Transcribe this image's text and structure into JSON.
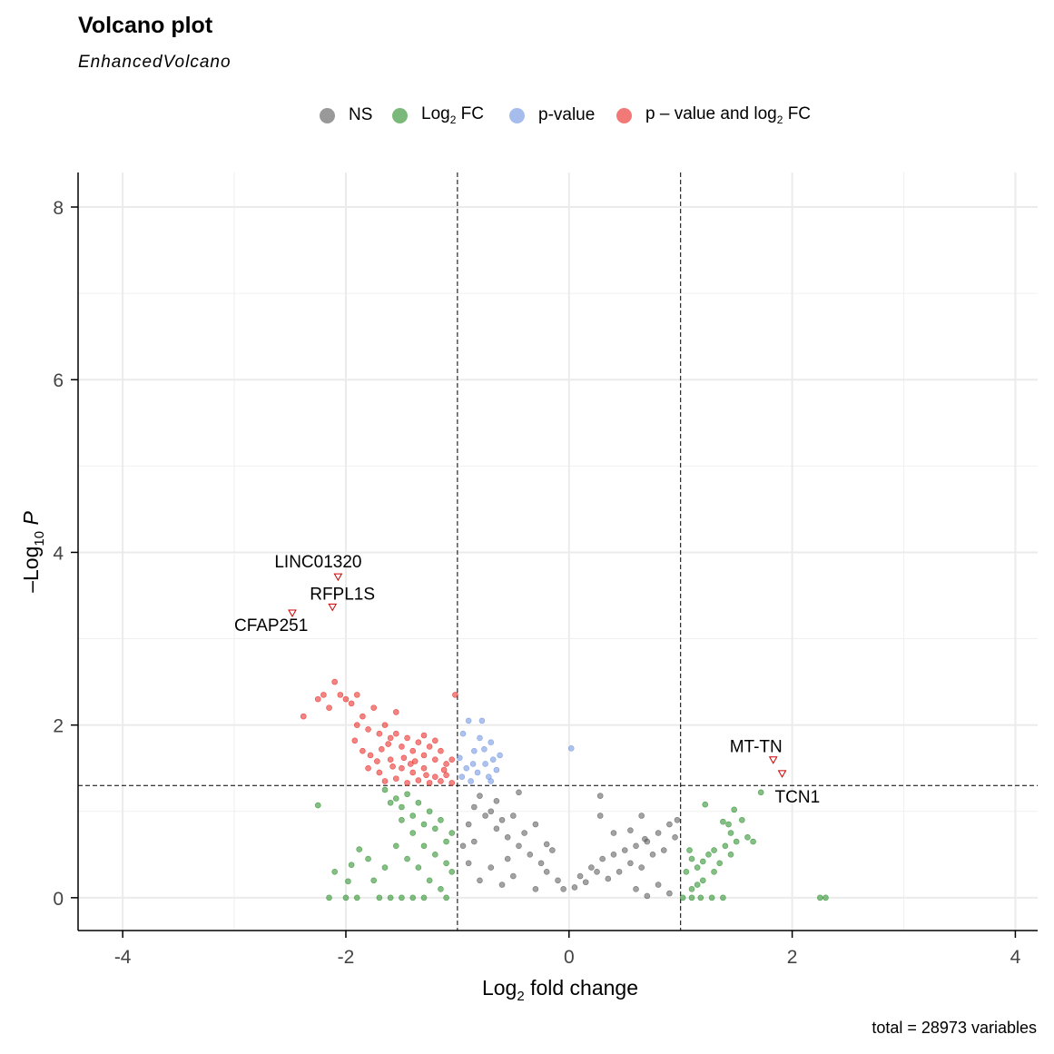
{
  "chart_data": {
    "type": "scatter",
    "title": "Volcano plot",
    "subtitle": "EnhancedVolcano",
    "caption": "total = 28973 variables",
    "xlabel": "Log2 fold change",
    "ylabel": "-Log10 P",
    "xlim": [
      -4.4,
      4.2
    ],
    "ylim": [
      -0.38,
      8.4
    ],
    "x_ticks": [
      -4,
      -2,
      0,
      2,
      4
    ],
    "x_tick_labels": [
      "-4",
      "-2",
      "0",
      "2",
      "4"
    ],
    "y_ticks": [
      0,
      2,
      4,
      6,
      8
    ],
    "y_tick_labels": [
      "0",
      "2",
      "4",
      "6",
      "8"
    ],
    "grid": true,
    "legend_position": "top",
    "fc_cutoffs": [
      -1,
      1
    ],
    "p_cutoff": 1.3,
    "series": [
      {
        "name": "NS",
        "color": "#555555",
        "points": [
          [
            -0.9,
            0.85
          ],
          [
            -0.85,
            1.05
          ],
          [
            -0.8,
            1.18
          ],
          [
            -0.75,
            0.95
          ],
          [
            -0.7,
            1.0
          ],
          [
            -0.65,
            0.8
          ],
          [
            -0.6,
            0.9
          ],
          [
            -0.55,
            0.7
          ],
          [
            -0.5,
            0.95
          ],
          [
            -0.45,
            0.6
          ],
          [
            -0.4,
            0.75
          ],
          [
            -0.35,
            0.5
          ],
          [
            -0.3,
            0.85
          ],
          [
            -0.25,
            0.4
          ],
          [
            -0.2,
            0.3
          ],
          [
            -0.15,
            0.55
          ],
          [
            -0.1,
            0.2
          ],
          [
            -0.05,
            0.1
          ],
          [
            0.05,
            0.12
          ],
          [
            0.1,
            0.25
          ],
          [
            0.15,
            0.18
          ],
          [
            0.2,
            0.35
          ],
          [
            0.25,
            0.3
          ],
          [
            0.3,
            0.45
          ],
          [
            0.35,
            0.22
          ],
          [
            0.4,
            0.5
          ],
          [
            0.45,
            0.3
          ],
          [
            0.5,
            0.55
          ],
          [
            0.55,
            0.4
          ],
          [
            0.6,
            0.6
          ],
          [
            0.65,
            0.35
          ],
          [
            0.7,
            0.65
          ],
          [
            0.75,
            0.5
          ],
          [
            0.8,
            0.75
          ],
          [
            0.85,
            0.55
          ],
          [
            0.9,
            0.85
          ],
          [
            0.95,
            0.7
          ],
          [
            0.97,
            0.9
          ],
          [
            0.28,
            0.95
          ],
          [
            0.55,
            0.78
          ],
          [
            0.68,
            0.68
          ],
          [
            0.28,
            1.18
          ],
          [
            -0.65,
            1.12
          ],
          [
            -0.45,
            1.22
          ],
          [
            -0.9,
            0.4
          ],
          [
            -0.8,
            0.2
          ],
          [
            -0.7,
            0.35
          ],
          [
            -0.6,
            0.15
          ],
          [
            -0.5,
            0.25
          ],
          [
            -0.3,
            0.1
          ],
          [
            0.6,
            0.1
          ],
          [
            0.7,
            0.02
          ],
          [
            0.8,
            0.15
          ],
          [
            0.9,
            0.05
          ],
          [
            -0.95,
            0.6
          ],
          [
            0.65,
            0.95
          ],
          [
            0.4,
            0.75
          ],
          [
            -0.2,
            0.62
          ],
          [
            -0.55,
            0.45
          ],
          [
            -0.85,
            0.65
          ]
        ]
      },
      {
        "name": "Log2 FC",
        "color": "#228b22",
        "points": [
          [
            -1.65,
            1.25
          ],
          [
            -1.55,
            1.15
          ],
          [
            -1.5,
            1.05
          ],
          [
            -1.45,
            1.2
          ],
          [
            -1.4,
            0.95
          ],
          [
            -1.35,
            1.1
          ],
          [
            -1.3,
            0.85
          ],
          [
            -1.25,
            1.0
          ],
          [
            -1.2,
            0.8
          ],
          [
            -1.15,
            0.9
          ],
          [
            -1.1,
            0.65
          ],
          [
            -1.05,
            0.75
          ],
          [
            -1.6,
            1.1
          ],
          [
            -1.5,
            0.9
          ],
          [
            -1.4,
            0.75
          ],
          [
            -1.3,
            0.6
          ],
          [
            -1.2,
            0.5
          ],
          [
            -1.1,
            0.4
          ],
          [
            -1.05,
            0.3
          ],
          [
            -1.55,
            0.6
          ],
          [
            -1.45,
            0.45
          ],
          [
            -1.35,
            0.35
          ],
          [
            -1.25,
            0.2
          ],
          [
            -1.15,
            0.1
          ],
          [
            -1.7,
            0.0
          ],
          [
            -1.5,
            0.0
          ],
          [
            -1.3,
            0.0
          ],
          [
            -1.1,
            0.0
          ],
          [
            -2.25,
            1.07
          ],
          [
            -1.88,
            0.56
          ],
          [
            -1.95,
            0.38
          ],
          [
            -2.1,
            0.3
          ],
          [
            -1.98,
            0.19
          ],
          [
            -1.75,
            0.2
          ],
          [
            -1.8,
            0.45
          ],
          [
            -1.65,
            0.35
          ],
          [
            -2.15,
            0.0
          ],
          [
            -2.0,
            0.0
          ],
          [
            -1.9,
            0.0
          ],
          [
            -1.6,
            0.0
          ],
          [
            -1.4,
            0.0
          ],
          [
            1.05,
            0.3
          ],
          [
            1.1,
            0.45
          ],
          [
            1.15,
            0.35
          ],
          [
            1.2,
            0.42
          ],
          [
            1.25,
            0.5
          ],
          [
            1.3,
            0.55
          ],
          [
            1.35,
            0.4
          ],
          [
            1.4,
            0.6
          ],
          [
            1.45,
            0.75
          ],
          [
            1.5,
            0.65
          ],
          [
            1.55,
            0.9
          ],
          [
            1.45,
            0.5
          ],
          [
            1.3,
            0.3
          ],
          [
            1.2,
            0.2
          ],
          [
            1.1,
            0.1
          ],
          [
            1.22,
            1.08
          ],
          [
            1.38,
            0.88
          ],
          [
            1.43,
            0.85
          ],
          [
            1.48,
            1.02
          ],
          [
            1.6,
            0.7
          ],
          [
            1.65,
            0.65
          ],
          [
            1.72,
            1.22
          ],
          [
            1.02,
            0.0
          ],
          [
            1.1,
            0.0
          ],
          [
            1.18,
            0.0
          ],
          [
            1.28,
            0.0
          ],
          [
            1.38,
            0.0
          ],
          [
            2.25,
            0.0
          ],
          [
            2.3,
            0.0
          ],
          [
            1.08,
            0.55
          ],
          [
            1.15,
            0.15
          ]
        ]
      },
      {
        "name": "p-value",
        "color": "#6b8fe0",
        "points": [
          [
            -0.98,
            1.62
          ],
          [
            -0.95,
            1.9
          ],
          [
            -0.92,
            1.5
          ],
          [
            -0.9,
            2.05
          ],
          [
            -0.88,
            1.35
          ],
          [
            -0.85,
            1.7
          ],
          [
            -0.82,
            1.45
          ],
          [
            -0.8,
            1.85
          ],
          [
            -0.78,
            2.05
          ],
          [
            -0.75,
            1.55
          ],
          [
            -0.72,
            1.4
          ],
          [
            -0.7,
            1.8
          ],
          [
            -0.68,
            1.6
          ],
          [
            -0.65,
            1.48
          ],
          [
            -0.62,
            1.65
          ],
          [
            -0.96,
            1.4
          ],
          [
            -0.86,
            1.55
          ],
          [
            -0.7,
            1.35
          ],
          [
            -0.76,
            1.72
          ],
          [
            0.02,
            1.73
          ]
        ]
      },
      {
        "name": "p - value and log2 FC",
        "color": "#e8201c",
        "points": [
          [
            -2.1,
            2.5
          ],
          [
            -2.2,
            2.35
          ],
          [
            -2.25,
            2.3
          ],
          [
            -2.38,
            2.1
          ],
          [
            -2.15,
            2.2
          ],
          [
            -2.05,
            2.35
          ],
          [
            -1.95,
            2.25
          ],
          [
            -1.9,
            2.0
          ],
          [
            -1.85,
            2.1
          ],
          [
            -1.8,
            1.95
          ],
          [
            -1.75,
            2.2
          ],
          [
            -1.7,
            1.9
          ],
          [
            -1.65,
            2.0
          ],
          [
            -1.6,
            1.85
          ],
          [
            -1.55,
            1.9
          ],
          [
            -1.5,
            1.75
          ],
          [
            -1.45,
            1.85
          ],
          [
            -1.4,
            1.7
          ],
          [
            -1.35,
            1.8
          ],
          [
            -1.3,
            1.65
          ],
          [
            -1.25,
            1.75
          ],
          [
            -1.2,
            1.6
          ],
          [
            -1.15,
            1.7
          ],
          [
            -1.1,
            1.55
          ],
          [
            -1.05,
            1.6
          ],
          [
            -1.02,
            2.35
          ],
          [
            -1.8,
            1.5
          ],
          [
            -1.7,
            1.45
          ],
          [
            -1.6,
            1.6
          ],
          [
            -1.5,
            1.5
          ],
          [
            -1.4,
            1.45
          ],
          [
            -1.3,
            1.5
          ],
          [
            -1.2,
            1.4
          ],
          [
            -1.1,
            1.42
          ],
          [
            -1.65,
            1.35
          ],
          [
            -1.55,
            1.38
          ],
          [
            -1.45,
            1.33
          ],
          [
            -1.35,
            1.36
          ],
          [
            -1.25,
            1.33
          ],
          [
            -1.15,
            1.35
          ],
          [
            -1.05,
            1.33
          ],
          [
            -1.85,
            1.7
          ],
          [
            -1.78,
            1.65
          ],
          [
            -1.68,
            1.72
          ],
          [
            -2.0,
            2.3
          ],
          [
            -1.9,
            2.35
          ],
          [
            -1.55,
            2.15
          ],
          [
            -1.3,
            1.88
          ],
          [
            -1.2,
            1.82
          ],
          [
            -1.62,
            1.78
          ],
          [
            -1.48,
            1.62
          ],
          [
            -1.38,
            1.58
          ],
          [
            -1.28,
            1.42
          ],
          [
            -1.12,
            1.48
          ],
          [
            -1.72,
            1.58
          ],
          [
            -1.92,
            1.82
          ],
          [
            -1.58,
            1.52
          ],
          [
            -1.42,
            1.55
          ]
        ]
      }
    ],
    "labels": [
      {
        "text": "LINC01320",
        "x": -2.07,
        "y": 3.72
      },
      {
        "text": "RFPL1S",
        "x": -2.12,
        "y": 3.37
      },
      {
        "text": "CFAP251",
        "x": -2.48,
        "y": 3.3
      },
      {
        "text": "MT-TN",
        "x": 1.83,
        "y": 1.6
      },
      {
        "text": "TCN1",
        "x": 1.91,
        "y": 1.44
      }
    ]
  },
  "legend": [
    {
      "label": "NS",
      "sub": "",
      "suffix": "",
      "color": "#555555"
    },
    {
      "label": "Log",
      "sub": "2",
      "suffix": " FC",
      "color": "#228b22"
    },
    {
      "label": "p-value",
      "sub": "",
      "suffix": "",
      "color": "#6b8fe0"
    },
    {
      "label": "p – value and log",
      "sub": "2",
      "suffix": " FC",
      "color": "#e8201c"
    }
  ]
}
